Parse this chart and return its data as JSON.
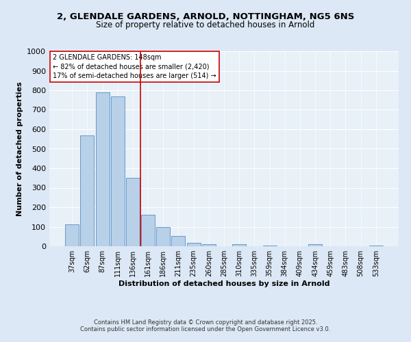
{
  "title1": "2, GLENDALE GARDENS, ARNOLD, NOTTINGHAM, NG5 6NS",
  "title2": "Size of property relative to detached houses in Arnold",
  "xlabel": "Distribution of detached houses by size in Arnold",
  "ylabel": "Number of detached properties",
  "categories": [
    "37sqm",
    "62sqm",
    "87sqm",
    "111sqm",
    "136sqm",
    "161sqm",
    "186sqm",
    "211sqm",
    "235sqm",
    "260sqm",
    "285sqm",
    "310sqm",
    "335sqm",
    "359sqm",
    "384sqm",
    "409sqm",
    "434sqm",
    "459sqm",
    "483sqm",
    "508sqm",
    "533sqm"
  ],
  "values": [
    113,
    567,
    790,
    770,
    350,
    163,
    100,
    53,
    18,
    12,
    0,
    10,
    0,
    5,
    0,
    0,
    10,
    0,
    0,
    0,
    5
  ],
  "bar_color": "#b8d0e8",
  "bar_edge_color": "#6699cc",
  "vline_x": 4.5,
  "vline_color": "#cc0000",
  "annotation_line1": "2 GLENDALE GARDENS: 148sqm",
  "annotation_line2": "← 82% of detached houses are smaller (2,420)",
  "annotation_line3": "17% of semi-detached houses are larger (514) →",
  "annotation_box_color": "#cc0000",
  "ylim": [
    0,
    1000
  ],
  "yticks": [
    0,
    100,
    200,
    300,
    400,
    500,
    600,
    700,
    800,
    900,
    1000
  ],
  "bg_color": "#dce8f5",
  "plot_bg_color": "#e8f0f8",
  "footer1": "Contains HM Land Registry data © Crown copyright and database right 2025.",
  "footer2": "Contains public sector information licensed under the Open Government Licence v3.0.",
  "title1_fontsize": 9.5,
  "title2_fontsize": 8.5,
  "xlabel_fontsize": 8,
  "ylabel_fontsize": 8,
  "tick_fontsize": 7,
  "annotation_fontsize": 7,
  "footer_fontsize": 6
}
